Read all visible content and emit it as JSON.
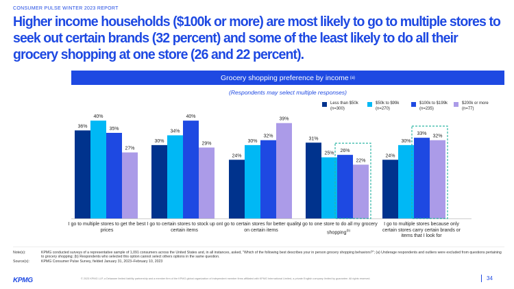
{
  "report": {
    "kicker": "CONSUMER PULSE WINTER 2023 REPORT",
    "headline": "Higher income households ($100k or more) are most likely to go to multiple stores to seek out certain brands (32 percent) and some of the least likely to do all their grocery shopping at one store (26 and 22 percent).",
    "page_number": "34"
  },
  "colors": {
    "accent": "#1e49e2",
    "series": [
      "#00338d",
      "#00b8f5",
      "#1e49e2",
      "#ab9be8"
    ],
    "highlight_box": "#2bb5a3"
  },
  "chart_data": {
    "type": "bar",
    "title": "Grocery shopping preference by income",
    "title_note": "(a)",
    "subtitle": "(Respondents may select multiple responses)",
    "categories": [
      "I go to multiple stores to get the best prices",
      "I go to certain stores to stock up on certain items",
      "I go to certain stores for better quality on certain items",
      "I go to one store to do all my grocery shopping",
      "I go to multiple stores because only certain stores carry certain brands or items that I look for"
    ],
    "category_notes": [
      "",
      "",
      "",
      "(b)",
      ""
    ],
    "series": [
      {
        "name": "Less than $50k",
        "n": "(n=300)",
        "values": [
          36,
          30,
          24,
          31,
          24
        ]
      },
      {
        "name": "$50k to $99k",
        "n": "(n=270)",
        "values": [
          40,
          34,
          30,
          25,
          30
        ]
      },
      {
        "name": "$100k to $199k",
        "n": "(n=235)",
        "values": [
          35,
          40,
          32,
          26,
          33
        ]
      },
      {
        "name": "$200k or more",
        "n": "(n=77)",
        "values": [
          27,
          29,
          39,
          22,
          32
        ]
      }
    ],
    "value_suffix": "%",
    "ylim": [
      0,
      42
    ],
    "grid": false,
    "legend_position": "top-right",
    "highlights": [
      {
        "category_index": 3,
        "series_indices": [
          2,
          3
        ]
      },
      {
        "category_index": 4,
        "series_indices": [
          2,
          3
        ]
      }
    ]
  },
  "notes": {
    "notes_label": "Note(s):",
    "notes_text": "KPMG conducted surveys of a representative sample of 1,091 consumers across the United States and, in all instances, asked, \"Which of the following best describes your in person grocery shopping behaviors?\"; (a) Underage respondents and outliers were excluded from questions pertaining to grocery shopping; (b) Respondents who selected this option cannot select others options in the same question.",
    "source_label": "Source(s):",
    "source_text": "KPMG Consumer Pulse Survey, fielded January 31, 2023–February 10, 2023"
  },
  "footer": {
    "logo": "KPMG",
    "copyright": "© 2023 KPMG LLP, a Delaware limited liability partnership and a member firm of the KPMG global organization of independent member firms affiliated with KPMG International Limited, a private English company limited by guarantee. All rights reserved."
  }
}
